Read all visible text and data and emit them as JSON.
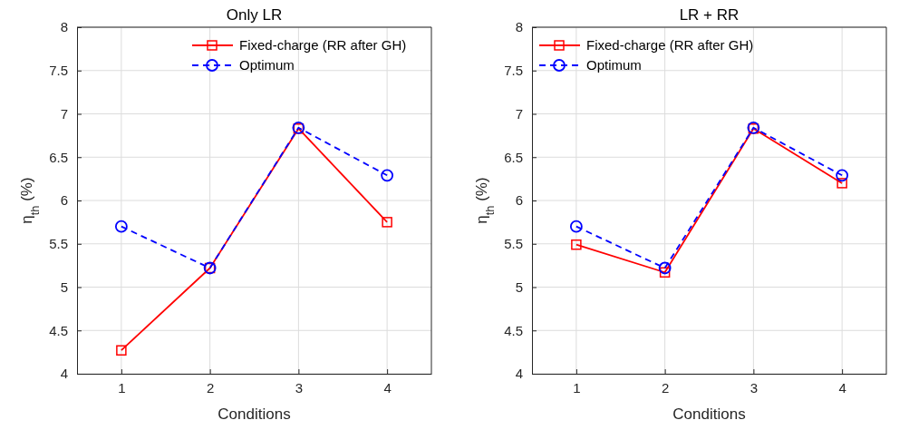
{
  "chart_data": [
    {
      "type": "line",
      "title": "Only LR",
      "xlabel": "Conditions",
      "ylabel": "η$_{th}$ (%)",
      "x": [
        1,
        2,
        3,
        4
      ],
      "xlim": [
        0.5,
        4.5
      ],
      "xticks": [
        1,
        2,
        3,
        4
      ],
      "ylim": [
        4,
        8
      ],
      "yticks": [
        4,
        4.5,
        5,
        5.5,
        6,
        6.5,
        7,
        7.5,
        8
      ],
      "grid": true,
      "legend": "top right",
      "series": [
        {
          "name": "Fixed-charge (RR after GH)",
          "color": "#ff0000",
          "marker": "square",
          "line_style": "solid",
          "values": [
            4.27,
            5.22,
            6.83,
            5.75
          ]
        },
        {
          "name": "Optimum",
          "color": "#0000ff",
          "marker": "circle",
          "line_style": "dashed",
          "values": [
            5.7,
            5.22,
            6.84,
            6.29
          ]
        }
      ]
    },
    {
      "type": "line",
      "title": "LR + RR",
      "xlabel": "Conditions",
      "ylabel": "η$_{th}$ (%)",
      "x": [
        1,
        2,
        3,
        4
      ],
      "xlim": [
        0.5,
        4.5
      ],
      "xticks": [
        1,
        2,
        3,
        4
      ],
      "ylim": [
        4,
        8
      ],
      "yticks": [
        4,
        4.5,
        5,
        5.5,
        6,
        6.5,
        7,
        7.5,
        8
      ],
      "grid": true,
      "legend": "top left",
      "series": [
        {
          "name": "Fixed-charge (RR after GH)",
          "color": "#ff0000",
          "marker": "square",
          "line_style": "solid",
          "values": [
            5.49,
            5.17,
            6.83,
            6.2
          ]
        },
        {
          "name": "Optimum",
          "color": "#0000ff",
          "marker": "circle",
          "line_style": "dashed",
          "values": [
            5.7,
            5.22,
            6.84,
            6.29
          ]
        }
      ]
    }
  ]
}
